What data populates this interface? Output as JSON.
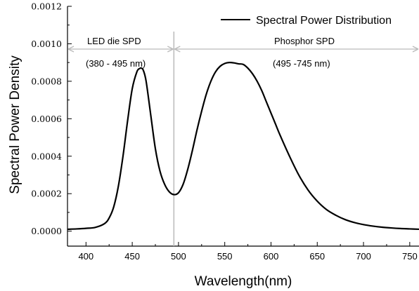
{
  "chart_data": {
    "type": "line",
    "title": "",
    "xlabel": "Wavelength(nm)",
    "ylabel": "Spectral  Power  Density",
    "xlim": [
      380,
      760
    ],
    "ylim": [
      -8e-05,
      0.0012
    ],
    "x_ticks": [
      400,
      450,
      500,
      550,
      600,
      650,
      700,
      750
    ],
    "x_tick_labels": [
      "400",
      "450",
      "500",
      "550",
      "600",
      "650",
      "700",
      "750"
    ],
    "y_ticks": [
      0.0,
      0.0002,
      0.0004,
      0.0006,
      0.0008,
      0.001,
      0.0012
    ],
    "y_tick_labels": [
      "0.0000",
      "0.0002",
      "0.0004",
      "0.0006",
      "0.0008",
      "0.0010",
      "0.0012"
    ],
    "grid": false,
    "legend": {
      "placement": "top-right",
      "entries": [
        "Spectral Power Distribution"
      ]
    },
    "series": [
      {
        "name": "Spectral Power Distribution",
        "color": "#000000",
        "x": [
          380,
          390,
          400,
          410,
          420,
          425,
          430,
          435,
          440,
          445,
          450,
          455,
          458,
          460,
          462,
          465,
          470,
          475,
          480,
          485,
          490,
          495,
          500,
          505,
          510,
          515,
          520,
          525,
          530,
          535,
          540,
          545,
          550,
          555,
          560,
          565,
          570,
          575,
          580,
          585,
          590,
          595,
          600,
          605,
          610,
          620,
          630,
          640,
          650,
          660,
          670,
          680,
          690,
          700,
          710,
          720,
          730,
          740,
          750,
          760
        ],
        "y": [
          1e-05,
          1.2e-05,
          1.5e-05,
          2e-05,
          4e-05,
          7e-05,
          0.00013,
          0.00024,
          0.0004,
          0.00059,
          0.00076,
          0.00085,
          0.000868,
          0.00087,
          0.000858,
          0.0008,
          0.00062,
          0.00044,
          0.00032,
          0.00025,
          0.00021,
          0.000195,
          0.000205,
          0.00025,
          0.00033,
          0.00043,
          0.00054,
          0.00064,
          0.00073,
          0.0008,
          0.00085,
          0.00088,
          0.000895,
          0.0009,
          0.000898,
          0.000893,
          0.00089,
          0.00087,
          0.00084,
          0.0008,
          0.00075,
          0.00069,
          0.00063,
          0.00057,
          0.00051,
          0.0004,
          0.0003,
          0.00022,
          0.00016,
          0.000115,
          8.5e-05,
          6.2e-05,
          4.6e-05,
          3.5e-05,
          2.7e-05,
          2.1e-05,
          1.7e-05,
          1.4e-05,
          1.2e-05,
          1e-05
        ]
      }
    ],
    "annotations": {
      "divider_x": 495,
      "led_label": "LED die SPD",
      "led_range": "(380 - 495 nm)",
      "phosphor_label": "Phosphor SPD",
      "phosphor_range": "(495 -745 nm)",
      "arrow_color": "#bbbbbb"
    }
  }
}
